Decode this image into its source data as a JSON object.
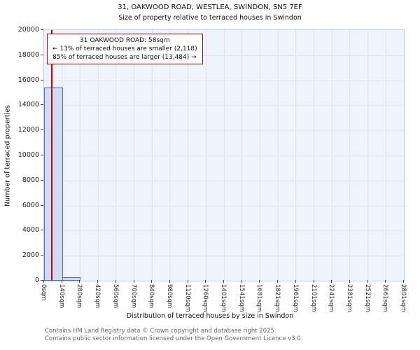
{
  "chart_data": {
    "type": "bar",
    "title": "31, OAKWOOD ROAD, WESTLEA, SWINDON, SN5 7EF",
    "subtitle": "Size of property relative to terraced houses in Swindon",
    "xlabel": "Distribution of terraced houses by size in Swindon",
    "ylabel": "Number of terraced properties",
    "categories": [
      "0sqm",
      "140sqm",
      "280sqm",
      "420sqm",
      "560sqm",
      "700sqm",
      "840sqm",
      "980sqm",
      "1120sqm",
      "1260sqm",
      "1401sqm",
      "1541sqm",
      "1681sqm",
      "1821sqm",
      "1961sqm",
      "2101sqm",
      "2241sqm",
      "2381sqm",
      "2521sqm",
      "2661sqm",
      "2801sqm"
    ],
    "bin_edges_sqm": [
      0,
      140,
      280,
      420,
      560,
      700,
      840,
      980,
      1120,
      1260,
      1401,
      1541,
      1681,
      1821,
      1961,
      2101,
      2241,
      2381,
      2521,
      2661,
      2801
    ],
    "values": [
      15400,
      300,
      0,
      0,
      0,
      0,
      0,
      0,
      0,
      0,
      0,
      0,
      0,
      0,
      0,
      0,
      0,
      0,
      0,
      0
    ],
    "ylim": [
      0,
      20000
    ],
    "yticks": [
      0,
      2000,
      4000,
      6000,
      8000,
      10000,
      12000,
      14000,
      16000,
      18000,
      20000
    ],
    "grid": true,
    "legend": null,
    "annotation": {
      "title": "31 OAKWOOD ROAD: 58sqm",
      "smaller": "← 13% of terraced houses are smaller (2,118)",
      "larger": "85% of terraced houses are larger (13,484) →",
      "marker_sqm": 58
    },
    "colors": {
      "bar_fill": "#cfdcf4",
      "bar_edge": "#4d6fd1",
      "marker_line": "#cc0000",
      "annotation_border": "#cc0000",
      "grid": "#dbe3f2",
      "plot_bg": "#eff3fa"
    }
  },
  "footer": {
    "line1": "Contains HM Land Registry data © Crown copyright and database right 2025.",
    "line2": "Contains public sector information licensed under the Open Government Licence v3.0."
  }
}
